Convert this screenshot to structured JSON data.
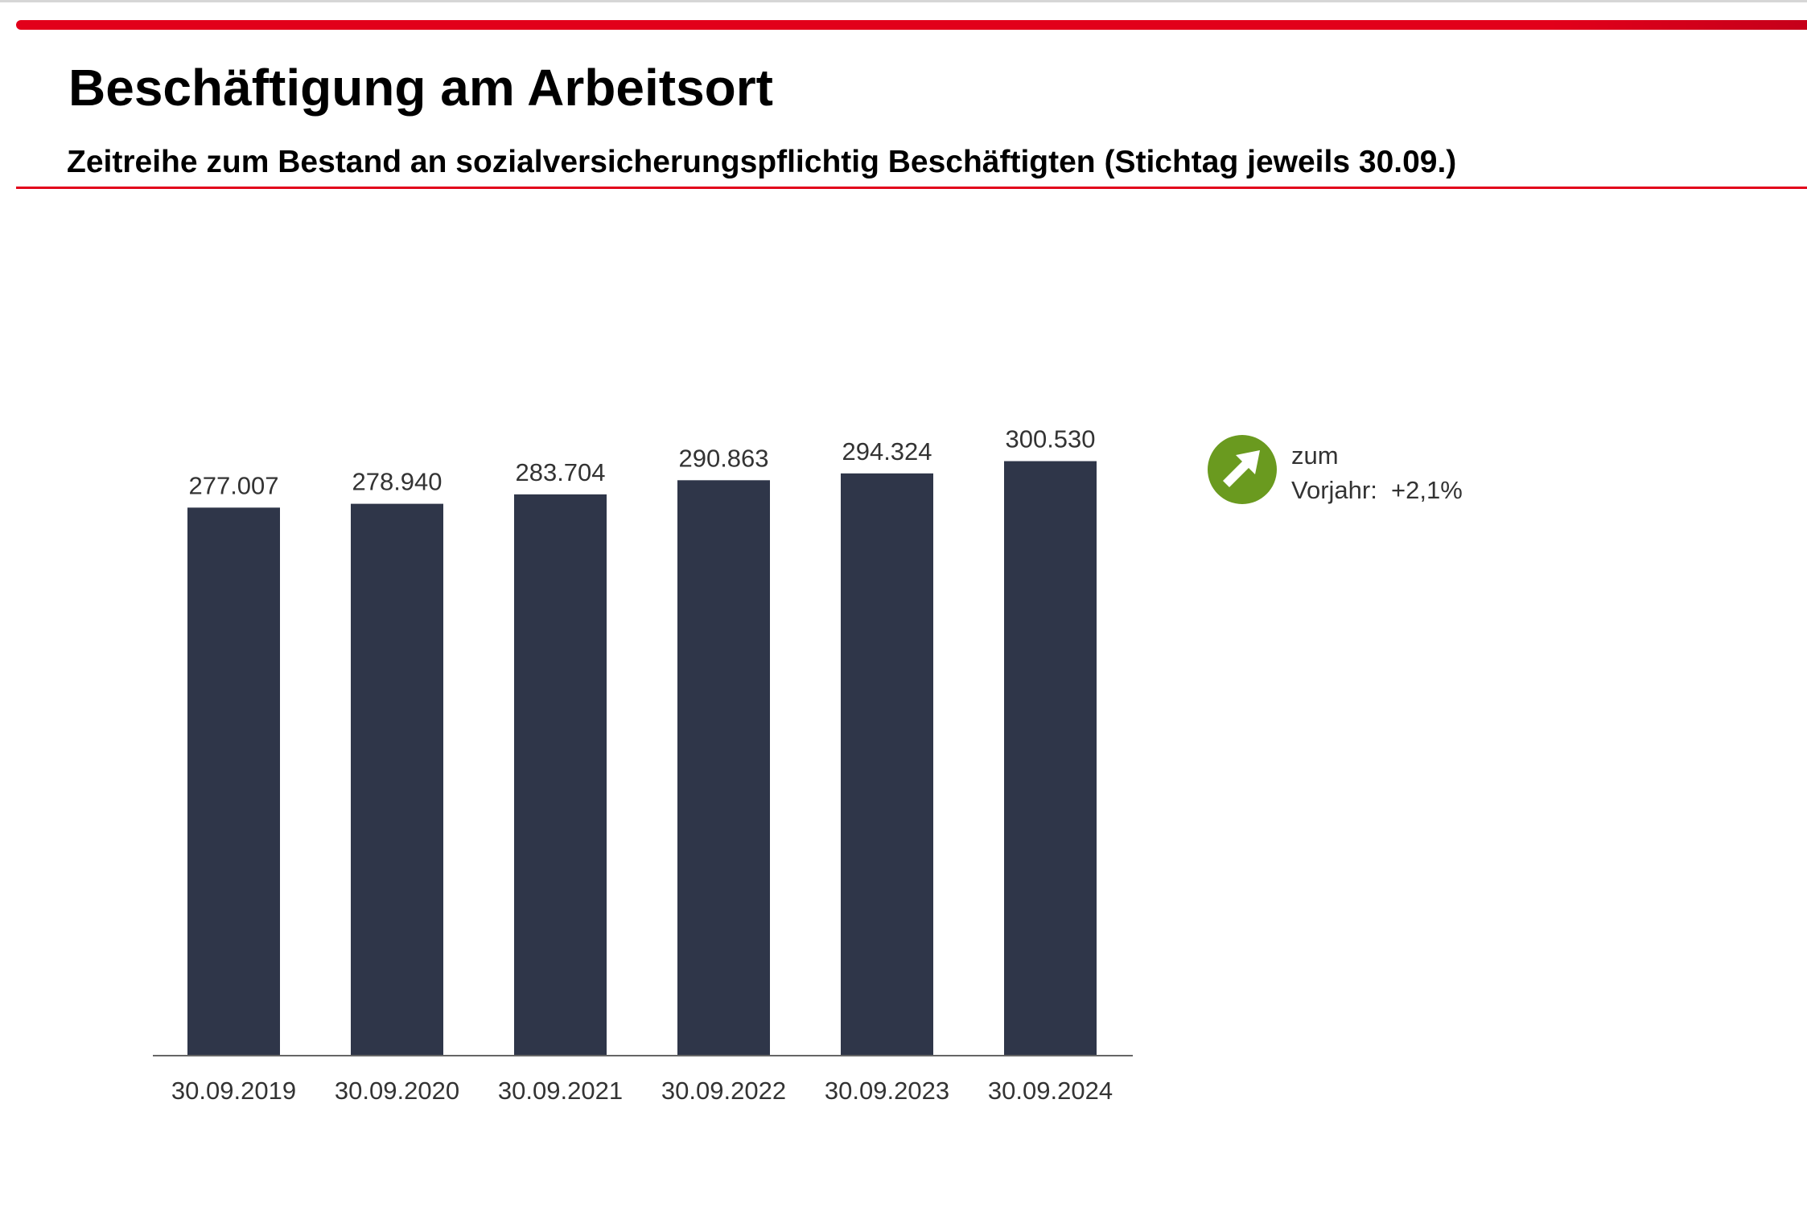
{
  "header": {
    "title": "Beschäftigung am Arbeitsort",
    "subtitle": "Zeitreihe zum Bestand an sozialversicherungspflichtig Beschäftigten (Stichtag jeweils 30.09.)"
  },
  "colors": {
    "accent": "#e2001a",
    "bar": "#2f3649",
    "trend": "#6a9a1f"
  },
  "trend": {
    "icon": "arrow-up-right-icon",
    "line1": "zum",
    "line2": "Vorjahr:  +2,1%"
  },
  "chart_data": {
    "type": "bar",
    "title": "",
    "xlabel": "",
    "ylabel": "",
    "ylim": [
      0,
      350000
    ],
    "grid": false,
    "categories": [
      "30.09.2019",
      "30.09.2020",
      "30.09.2021",
      "30.09.2022",
      "30.09.2023",
      "30.09.2024"
    ],
    "values": [
      277007,
      278940,
      283704,
      290863,
      294324,
      300530
    ],
    "value_labels": [
      "277.007",
      "278.940",
      "283.704",
      "290.863",
      "294.324",
      "300.530"
    ]
  }
}
